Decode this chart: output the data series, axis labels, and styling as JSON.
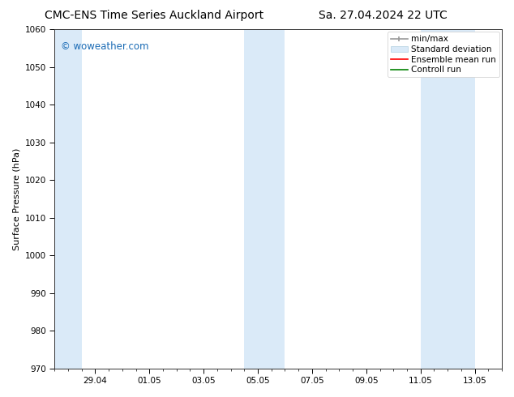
{
  "title_left": "CMC-ENS Time Series Auckland Airport",
  "title_right": "Sa. 27.04.2024 22 UTC",
  "ylabel": "Surface Pressure (hPa)",
  "ylim": [
    970,
    1060
  ],
  "yticks": [
    970,
    980,
    990,
    1000,
    1010,
    1020,
    1030,
    1040,
    1050,
    1060
  ],
  "xlim": [
    0,
    16.5
  ],
  "xtick_labels": [
    "29.04",
    "01.05",
    "03.05",
    "05.05",
    "07.05",
    "09.05",
    "11.05",
    "13.05"
  ],
  "xtick_positions": [
    1.5,
    3.5,
    5.5,
    7.5,
    9.5,
    11.5,
    13.5,
    15.5
  ],
  "shaded_bands": [
    {
      "x_start": 0.0,
      "x_end": 1.0,
      "color": "#daeaf8"
    },
    {
      "x_start": 7.0,
      "x_end": 8.5,
      "color": "#daeaf8"
    },
    {
      "x_start": 13.5,
      "x_end": 15.5,
      "color": "#daeaf8"
    }
  ],
  "watermark": "© woweather.com",
  "watermark_color": "#1a6bb5",
  "background_color": "#ffffff",
  "plot_bg_color": "#ffffff",
  "legend_items": [
    {
      "label": "min/max",
      "color": "#aaaaaa",
      "style": "minmax"
    },
    {
      "label": "Standard deviation",
      "color": "#daeaf8",
      "style": "fill"
    },
    {
      "label": "Ensemble mean run",
      "color": "#ff0000",
      "style": "line"
    },
    {
      "label": "Controll run",
      "color": "#008000",
      "style": "line"
    }
  ],
  "title_fontsize": 10,
  "axis_label_fontsize": 8,
  "tick_fontsize": 7.5,
  "legend_fontsize": 7.5,
  "watermark_fontsize": 8.5
}
